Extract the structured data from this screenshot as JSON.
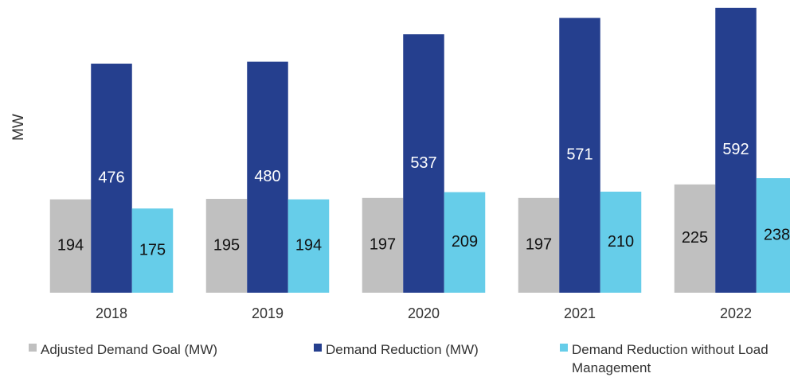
{
  "chart_data": {
    "type": "bar",
    "y_label": "MW",
    "categories": [
      "2018",
      "2019",
      "2020",
      "2021",
      "2022"
    ],
    "series": [
      {
        "name": "Adjusted Demand Goal (MW)",
        "color": "#c0c0c0",
        "values": [
          194,
          195,
          197,
          197,
          225
        ]
      },
      {
        "name": "Demand Reduction (MW)",
        "color": "#253f8e",
        "values": [
          476,
          480,
          537,
          571,
          592
        ]
      },
      {
        "name": "Demand Reduction without Load Management",
        "color": "#66cde9",
        "values": [
          175,
          194,
          209,
          210,
          238
        ]
      }
    ],
    "ylim": [
      0,
      600
    ]
  }
}
